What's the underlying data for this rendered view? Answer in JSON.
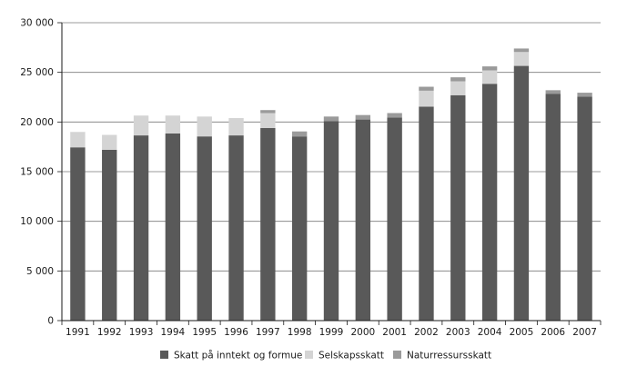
{
  "chart_data": {
    "type": "bar",
    "stacked": true,
    "title": "",
    "xlabel": "",
    "ylabel": "",
    "ylim": [
      0,
      30000
    ],
    "yticks": [
      0,
      5000,
      10000,
      15000,
      20000,
      25000,
      30000
    ],
    "ytick_labels": [
      "0",
      "5 000",
      "10 000",
      "15 000",
      "20 000",
      "25 000",
      "30 000"
    ],
    "grid": true,
    "legend_position": "bottom",
    "categories": [
      "1991",
      "1992",
      "1993",
      "1994",
      "1995",
      "1996",
      "1997",
      "1998",
      "1999",
      "2000",
      "2001",
      "2002",
      "2003",
      "2004",
      "2005",
      "2006",
      "2007"
    ],
    "series": [
      {
        "name": "Skatt på inntekt og formue",
        "color": "#595959",
        "values": [
          17450,
          17200,
          18650,
          18850,
          18550,
          18650,
          19400,
          18550,
          20100,
          20250,
          20450,
          21550,
          22700,
          23850,
          25650,
          22850,
          22550
        ]
      },
      {
        "name": "Selskapsskatt",
        "color": "#d4d4d4",
        "values": [
          1550,
          1500,
          2000,
          1800,
          2000,
          1750,
          1500,
          0,
          0,
          0,
          0,
          1600,
          1400,
          1350,
          1400,
          0,
          0
        ]
      },
      {
        "name": "Naturressursskatt",
        "color": "#9a9a9a",
        "values": [
          0,
          0,
          0,
          0,
          0,
          0,
          300,
          500,
          450,
          450,
          450,
          400,
          400,
          400,
          350,
          350,
          400
        ]
      }
    ]
  }
}
